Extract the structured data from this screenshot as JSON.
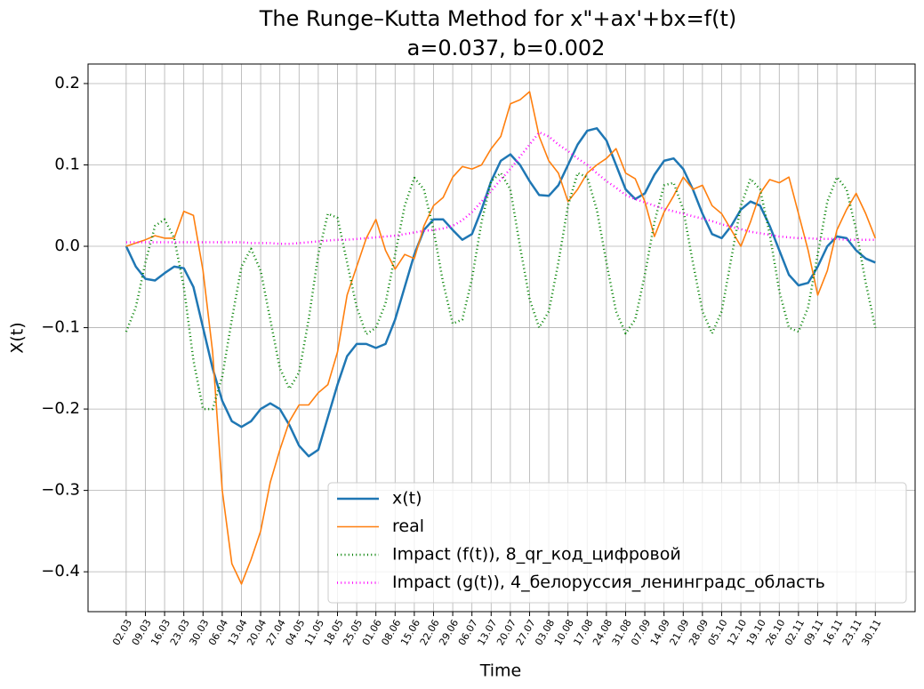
{
  "chart_data": {
    "type": "line",
    "title": "The Runge–Kutta Method for x\"+ax'+bx=f(t)",
    "subtitle": "a=0.037, b=0.002",
    "x_label": "Time",
    "y_label": "X(t)",
    "xlim": [
      -13.9,
      287.5
    ],
    "ylim": [
      -0.449,
      0.224
    ],
    "xticks": [
      {
        "value": 0,
        "label": "02.03"
      },
      {
        "value": 7,
        "label": "09.03"
      },
      {
        "value": 14,
        "label": "16.03"
      },
      {
        "value": 21,
        "label": "23.03"
      },
      {
        "value": 28,
        "label": "30.03"
      },
      {
        "value": 35,
        "label": "06.04"
      },
      {
        "value": 42,
        "label": "13.04"
      },
      {
        "value": 49,
        "label": "20.04"
      },
      {
        "value": 56,
        "label": "27.04"
      },
      {
        "value": 63,
        "label": "04.05"
      },
      {
        "value": 70,
        "label": "11.05"
      },
      {
        "value": 77,
        "label": "18.05"
      },
      {
        "value": 84,
        "label": "25.05"
      },
      {
        "value": 91,
        "label": "01.06"
      },
      {
        "value": 98,
        "label": "08.06"
      },
      {
        "value": 105,
        "label": "15.06"
      },
      {
        "value": 112,
        "label": "22.06"
      },
      {
        "value": 119,
        "label": "29.06"
      },
      {
        "value": 126,
        "label": "06.07"
      },
      {
        "value": 133,
        "label": "13.07"
      },
      {
        "value": 140,
        "label": "20.07"
      },
      {
        "value": 147,
        "label": "27.07"
      },
      {
        "value": 154,
        "label": "03.08"
      },
      {
        "value": 161,
        "label": "10.08"
      },
      {
        "value": 168,
        "label": "17.08"
      },
      {
        "value": 175,
        "label": "24.08"
      },
      {
        "value": 182,
        "label": "31.08"
      },
      {
        "value": 189,
        "label": "07.09"
      },
      {
        "value": 196,
        "label": "14.09"
      },
      {
        "value": 203,
        "label": "21.09"
      },
      {
        "value": 210,
        "label": "28.09"
      },
      {
        "value": 217,
        "label": "05.10"
      },
      {
        "value": 224,
        "label": "12.10"
      },
      {
        "value": 231,
        "label": "19.10"
      },
      {
        "value": 238,
        "label": "26.10"
      },
      {
        "value": 245,
        "label": "02.11"
      },
      {
        "value": 252,
        "label": "09.11"
      },
      {
        "value": 259,
        "label": "16.11"
      },
      {
        "value": 266,
        "label": "23.11"
      },
      {
        "value": 273,
        "label": "30.11"
      }
    ],
    "yticks": [
      {
        "value": -0.4,
        "label": "−0.4"
      },
      {
        "value": -0.3,
        "label": "−0.3"
      },
      {
        "value": -0.2,
        "label": "−0.2"
      },
      {
        "value": -0.1,
        "label": "−0.1"
      },
      {
        "value": 0,
        "label": "0.0"
      },
      0.1,
      0.2
    ],
    "grid": true,
    "legend": "lower right",
    "x": [
      0,
      3.5,
      7,
      10.5,
      14,
      17.5,
      21,
      24.5,
      28,
      31.5,
      35,
      38.5,
      42,
      45.5,
      49,
      52.5,
      56,
      59.5,
      63,
      66.5,
      70,
      73.5,
      77,
      80.5,
      84,
      87.5,
      91,
      94.5,
      98,
      101.5,
      105,
      108.5,
      112,
      115.5,
      119,
      122.5,
      126,
      129.5,
      133,
      136.5,
      140,
      143.5,
      147,
      150.5,
      154,
      157.5,
      161,
      164.5,
      168,
      171.5,
      175,
      178.5,
      182,
      185.5,
      189,
      192.5,
      196,
      199.5,
      203,
      206.5,
      210,
      213.5,
      217,
      220.5,
      224,
      227.5,
      231,
      234.5,
      238,
      241.5,
      245,
      248.5,
      252,
      255.5,
      259,
      262.5,
      266,
      269.5,
      273
    ],
    "series": [
      {
        "name": "x(t)",
        "color": "#1f77b4",
        "linestyle": "solid",
        "width": 2.5,
        "values": [
          0,
          -0.025,
          -0.04,
          -0.042,
          -0.033,
          -0.025,
          -0.027,
          -0.05,
          -0.1,
          -0.15,
          -0.19,
          -0.215,
          -0.222,
          -0.215,
          -0.2,
          -0.193,
          -0.2,
          -0.22,
          -0.245,
          -0.258,
          -0.25,
          -0.21,
          -0.17,
          -0.135,
          -0.12,
          -0.12,
          -0.125,
          -0.12,
          -0.09,
          -0.05,
          -0.01,
          0.02,
          0.033,
          0.033,
          0.02,
          0.008,
          0.015,
          0.045,
          0.08,
          0.105,
          0.113,
          0.1,
          0.08,
          0.063,
          0.062,
          0.075,
          0.1,
          0.125,
          0.142,
          0.145,
          0.13,
          0.1,
          0.07,
          0.058,
          0.065,
          0.088,
          0.105,
          0.108,
          0.095,
          0.07,
          0.04,
          0.015,
          0.01,
          0.025,
          0.045,
          0.055,
          0.05,
          0.025,
          -0.005,
          -0.035,
          -0.048,
          -0.045,
          -0.025,
          0.0,
          0.012,
          0.01,
          -0.005,
          -0.015,
          -0.02
        ]
      },
      {
        "name": "real",
        "color": "#ff7f0e",
        "linestyle": "solid",
        "width": 1.6,
        "values": [
          0,
          0.004,
          0.008,
          0.013,
          0.01,
          0.01,
          0.043,
          0.038,
          -0.03,
          -0.13,
          -0.3,
          -0.39,
          -0.415,
          -0.385,
          -0.35,
          -0.29,
          -0.25,
          -0.215,
          -0.195,
          -0.195,
          -0.18,
          -0.17,
          -0.13,
          -0.06,
          -0.025,
          0.01,
          0.033,
          -0.005,
          -0.028,
          -0.01,
          -0.015,
          0.025,
          0.05,
          0.06,
          0.085,
          0.098,
          0.095,
          0.1,
          0.12,
          0.135,
          0.175,
          0.18,
          0.19,
          0.135,
          0.105,
          0.09,
          0.055,
          0.07,
          0.09,
          0.1,
          0.108,
          0.12,
          0.09,
          0.083,
          0.055,
          0.012,
          0.042,
          0.062,
          0.085,
          0.07,
          0.075,
          0.05,
          0.04,
          0.02,
          0.0,
          0.03,
          0.065,
          0.082,
          0.078,
          0.085,
          0.04,
          -0.005,
          -0.06,
          -0.03,
          0.02,
          0.045,
          0.065,
          0.04,
          0.01
        ]
      },
      {
        "name": "Impact (f(t)), 8_qr_код_цифровой",
        "color": "#008000",
        "linestyle": "dotted",
        "width": 2.5,
        "values": [
          -0.105,
          -0.075,
          -0.02,
          0.025,
          0.033,
          0.01,
          -0.05,
          -0.14,
          -0.2,
          -0.2,
          -0.16,
          -0.09,
          -0.025,
          -0.003,
          -0.03,
          -0.09,
          -0.15,
          -0.175,
          -0.155,
          -0.09,
          -0.01,
          0.04,
          0.035,
          -0.02,
          -0.075,
          -0.108,
          -0.1,
          -0.07,
          -0.01,
          0.05,
          0.084,
          0.07,
          0.02,
          -0.045,
          -0.095,
          -0.09,
          -0.04,
          0.03,
          0.08,
          0.09,
          0.07,
          0.0,
          -0.065,
          -0.1,
          -0.08,
          -0.02,
          0.05,
          0.09,
          0.085,
          0.045,
          -0.02,
          -0.08,
          -0.107,
          -0.09,
          -0.035,
          0.03,
          0.075,
          0.078,
          0.045,
          -0.02,
          -0.08,
          -0.107,
          -0.08,
          -0.015,
          0.05,
          0.083,
          0.07,
          0.015,
          -0.055,
          -0.1,
          -0.105,
          -0.075,
          -0.01,
          0.055,
          0.085,
          0.07,
          0.02,
          -0.045,
          -0.1
        ]
      },
      {
        "name": "Impact (g(t)), 4_белоруссия_ленинградс_область",
        "color": "#ff00ff",
        "linestyle": "dotted",
        "width": 2.5,
        "values": [
          0.005,
          0.005,
          0.005,
          0.005,
          0.005,
          0.005,
          0.005,
          0.005,
          0.005,
          0.005,
          0.005,
          0.005,
          0.005,
          0.004,
          0.004,
          0.004,
          0.003,
          0.003,
          0.004,
          0.005,
          0.006,
          0.007,
          0.008,
          0.008,
          0.009,
          0.01,
          0.011,
          0.012,
          0.013,
          0.015,
          0.017,
          0.019,
          0.02,
          0.022,
          0.025,
          0.032,
          0.042,
          0.055,
          0.068,
          0.082,
          0.095,
          0.11,
          0.125,
          0.14,
          0.135,
          0.125,
          0.117,
          0.108,
          0.1,
          0.09,
          0.08,
          0.072,
          0.063,
          0.058,
          0.054,
          0.05,
          0.046,
          0.043,
          0.04,
          0.037,
          0.034,
          0.031,
          0.027,
          0.024,
          0.021,
          0.018,
          0.016,
          0.014,
          0.012,
          0.011,
          0.01,
          0.01,
          0.009,
          0.009,
          0.009,
          0.008,
          0.008,
          0.008,
          0.008
        ]
      }
    ]
  }
}
